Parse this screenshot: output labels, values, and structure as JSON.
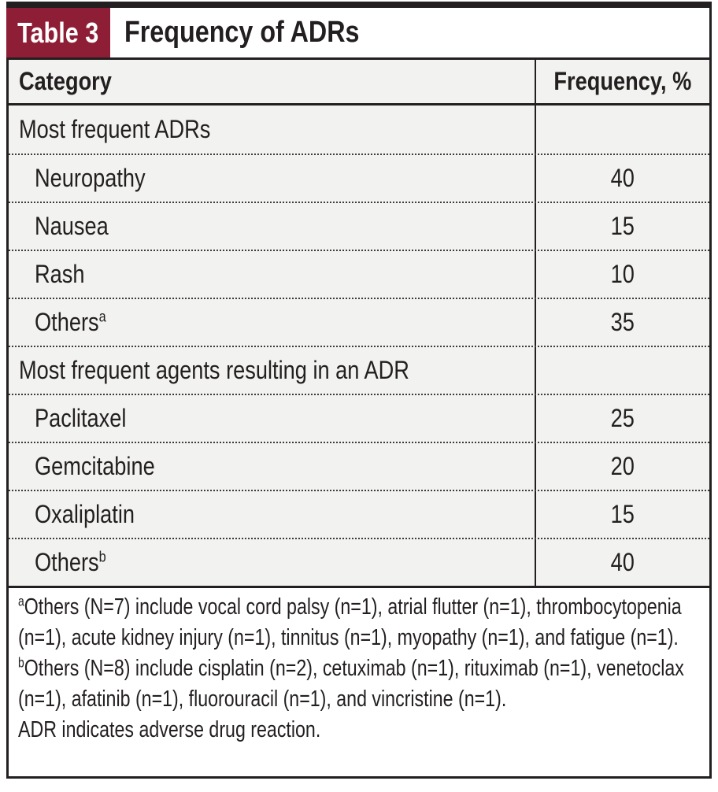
{
  "colors": {
    "accent_red": "#8e1e35",
    "line_black": "#231f20",
    "row_gray": "#f2f2f0",
    "background": "#ffffff"
  },
  "header": {
    "table_label": "Table 3",
    "title": "Frequency of ADRs"
  },
  "table": {
    "columns": [
      "Category",
      "Frequency, %"
    ],
    "rows": [
      {
        "label": "Most frequent ADRs",
        "sup": "",
        "value": ""
      },
      {
        "label": "Neuropathy",
        "sup": "",
        "value": "40"
      },
      {
        "label": "Nausea",
        "sup": "",
        "value": "15"
      },
      {
        "label": "Rash",
        "sup": "",
        "value": "10"
      },
      {
        "label": "Others",
        "sup": "a",
        "value": "35"
      },
      {
        "label": "Most frequent agents resulting in an ADR",
        "sup": "",
        "value": ""
      },
      {
        "label": "Paclitaxel",
        "sup": "",
        "value": "25"
      },
      {
        "label": "Gemcitabine",
        "sup": "",
        "value": "20"
      },
      {
        "label": "Oxaliplatin",
        "sup": "",
        "value": "15"
      },
      {
        "label": "Others",
        "sup": "b",
        "value": "40"
      }
    ]
  },
  "footnotes": [
    {
      "sup": "a",
      "text": "Others (N=7) include vocal cord palsy (n=1), atrial flutter (n=1), thrombocytopenia (n=1), acute kidney injury (n=1), tinnitus (n=1), myopathy (n=1), and fatigue (n=1)."
    },
    {
      "sup": "b",
      "text": "Others (N=8) include cisplatin (n=2), cetuximab (n=1), rituximab (n=1), venetoclax (n=1), afatinib (n=1), fluorouracil (n=1), and vincristine (n=1)."
    },
    {
      "sup": "",
      "text": "ADR indicates adverse drug reaction."
    }
  ]
}
